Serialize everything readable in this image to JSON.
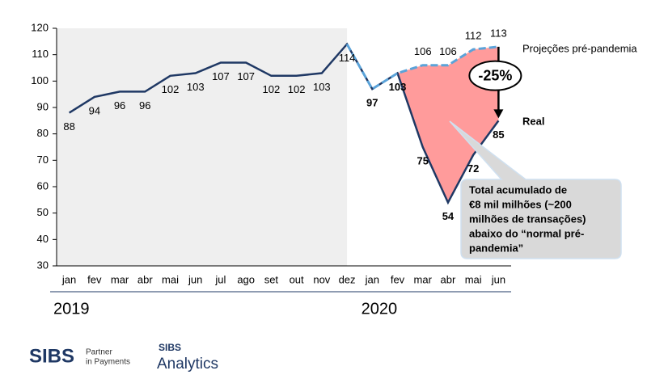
{
  "chart_data": {
    "type": "line",
    "categories": [
      "jan",
      "fev",
      "mar",
      "abr",
      "mai",
      "jun",
      "jul",
      "ago",
      "set",
      "out",
      "nov",
      "dez",
      "jan",
      "fev",
      "mar",
      "abr",
      "mai",
      "jun"
    ],
    "years": [
      "2019",
      "2020"
    ],
    "series": [
      {
        "name": "Real",
        "color": "#1f3864",
        "values": [
          88,
          94,
          96,
          96,
          102,
          103,
          107,
          107,
          102,
          102,
          103,
          114,
          97,
          103,
          75,
          54,
          72,
          85
        ]
      },
      {
        "name": "Projeções pré-pandemia",
        "color": "#5ba3d9",
        "values": [
          null,
          null,
          null,
          null,
          null,
          null,
          null,
          null,
          null,
          null,
          null,
          114,
          97,
          103,
          106,
          106,
          112,
          113
        ]
      }
    ],
    "ylim": [
      30,
      120
    ],
    "yticks": [
      30,
      40,
      50,
      60,
      70,
      80,
      90,
      100,
      110,
      120
    ],
    "drop_label": "-25%",
    "callout": [
      "Total acumulado de",
      "€8 mil milhões (~200",
      "milhões de transações)",
      "abaixo do “normal pré-",
      "pandemia”"
    ],
    "loss_fill": "#ff9b9b",
    "shade": "#efefef"
  },
  "logos": {
    "sibs": "SIBS",
    "sibs_tagline": [
      "Partner",
      "in Payments"
    ],
    "analytics_brand": "SIBS",
    "analytics": "Analytics"
  }
}
